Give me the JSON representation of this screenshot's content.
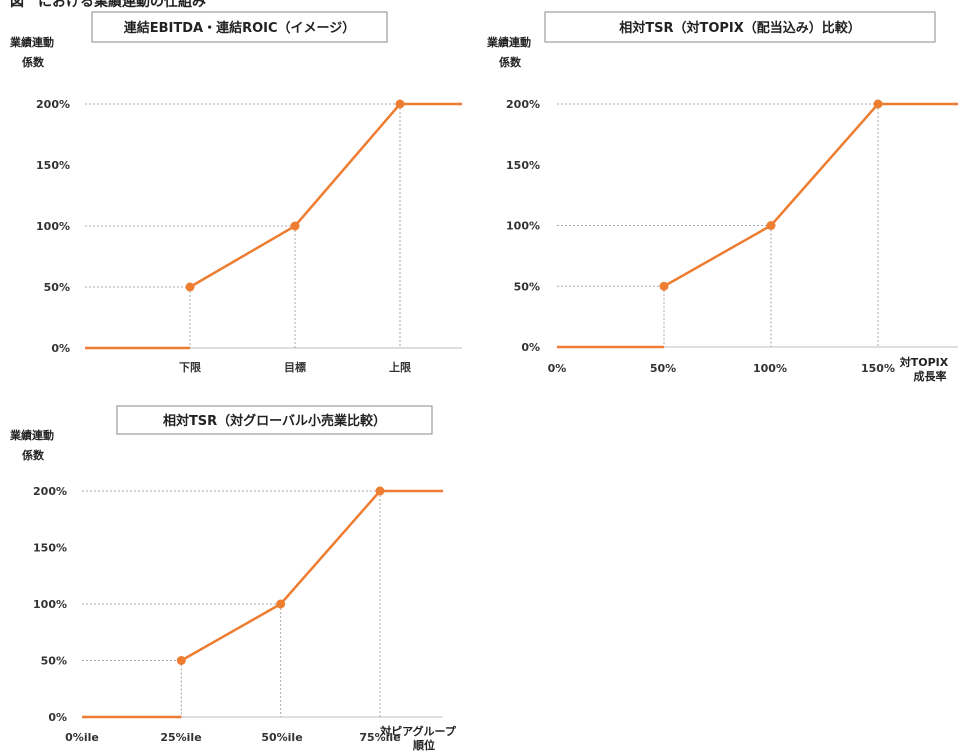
{
  "header": {
    "text": "図　における業績連動の仕組み"
  },
  "chart_data": [
    {
      "type": "line",
      "title": "連結EBITDA・連結ROIC（イメージ）",
      "ylabel": [
        "業績連動",
        "係数"
      ],
      "xlabel": [],
      "categories": [
        "下限",
        "目標",
        "上限"
      ],
      "yticks": [
        "0%",
        "50%",
        "100%",
        "150%",
        "200%"
      ],
      "ylim": [
        0,
        200
      ],
      "series": [
        {
          "values": [
            50,
            100,
            200
          ]
        }
      ],
      "flat_before": 0,
      "flat_after": 200,
      "grid": "dashed guides to points",
      "color": "#ed7d31"
    },
    {
      "type": "line",
      "title": "相対TSR（対TOPIX（配当込み）比較）",
      "ylabel": [
        "業績連動",
        "係数"
      ],
      "xlabel": [
        "対TOPIX",
        "成長率"
      ],
      "categories": [
        "0%",
        "50%",
        "100%",
        "150%"
      ],
      "yticks": [
        "0%",
        "50%",
        "100%",
        "150%",
        "200%"
      ],
      "ylim": [
        0,
        200
      ],
      "series": [
        {
          "x": [
            50,
            100,
            150
          ],
          "values": [
            50,
            100,
            200
          ]
        }
      ],
      "flat_before": 0,
      "flat_after": 200,
      "grid": "dashed guides to points",
      "color": "#ed7d31"
    },
    {
      "type": "line",
      "title": "相対TSR（対グローバル小売業比較）",
      "ylabel": [
        "業績連動",
        "係数"
      ],
      "xlabel": [
        "対ピアグループ",
        "順位"
      ],
      "categories": [
        "0%ile",
        "25%ile",
        "50%ile",
        "75%ile"
      ],
      "yticks": [
        "0%",
        "50%",
        "100%",
        "150%",
        "200%"
      ],
      "ylim": [
        0,
        200
      ],
      "series": [
        {
          "x": [
            25,
            50,
            75
          ],
          "values": [
            50,
            100,
            200
          ]
        }
      ],
      "flat_before": 0,
      "flat_after": 200,
      "grid": "dashed guides to points",
      "color": "#ed7d31"
    }
  ]
}
